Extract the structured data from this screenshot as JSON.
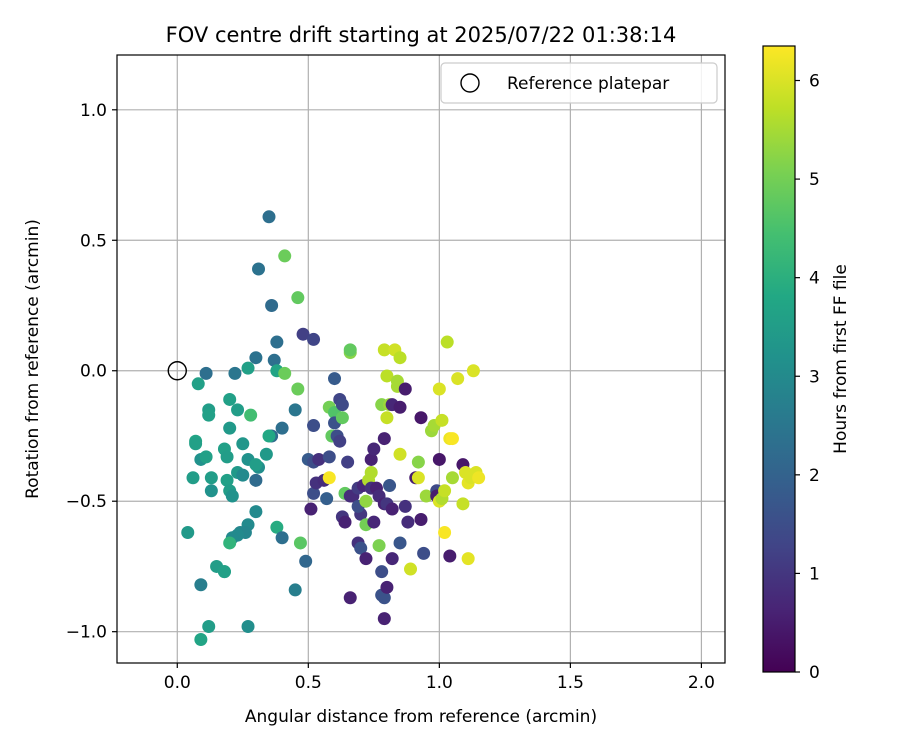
{
  "chart_data": {
    "type": "scatter",
    "title": "FOV centre drift starting at 2025/07/22 01:38:14",
    "xlabel": "Angular distance from reference (arcmin)",
    "ylabel": "Rotation from reference (arcmin)",
    "xlim": [
      -0.23,
      2.09
    ],
    "ylim": [
      -1.12,
      1.21
    ],
    "xticks": [
      0.0,
      0.5,
      1.0,
      1.5,
      2.0
    ],
    "xtick_labels": [
      "0.0",
      "0.5",
      "1.0",
      "1.5",
      "2.0"
    ],
    "yticks": [
      -1.0,
      -0.5,
      0.0,
      0.5,
      1.0
    ],
    "ytick_labels": [
      "−1.0",
      "−0.5",
      "0.0",
      "0.5",
      "1.0"
    ],
    "grid": true,
    "legend": {
      "placement": "top-right",
      "entries": [
        "Reference platepar"
      ]
    },
    "reference": {
      "x": 0.0,
      "y": 0.0
    },
    "colorbar": {
      "label": "Hours from first FF file",
      "range": [
        0,
        6.35
      ],
      "ticks": [
        0,
        1,
        2,
        3,
        4,
        5,
        6
      ],
      "colormap": "viridis"
    },
    "points": [
      {
        "x": 0.35,
        "y": 0.59,
        "c": 2.3
      },
      {
        "x": 0.31,
        "y": 0.39,
        "c": 2.4
      },
      {
        "x": 0.36,
        "y": 0.25,
        "c": 2.2
      },
      {
        "x": 0.41,
        "y": 0.44,
        "c": 4.9
      },
      {
        "x": 0.46,
        "y": 0.28,
        "c": 4.8
      },
      {
        "x": 0.48,
        "y": 0.14,
        "c": 1.2
      },
      {
        "x": 0.52,
        "y": 0.12,
        "c": 1.3
      },
      {
        "x": 0.38,
        "y": 0.11,
        "c": 2.3
      },
      {
        "x": 0.3,
        "y": 0.05,
        "c": 2.4
      },
      {
        "x": 0.37,
        "y": 0.04,
        "c": 2.3
      },
      {
        "x": 0.38,
        "y": 0.0,
        "c": 3.7
      },
      {
        "x": 0.41,
        "y": -0.01,
        "c": 4.9
      },
      {
        "x": 0.27,
        "y": 0.01,
        "c": 3.6
      },
      {
        "x": 0.22,
        "y": -0.01,
        "c": 2.5
      },
      {
        "x": 0.11,
        "y": -0.01,
        "c": 2.3
      },
      {
        "x": 0.08,
        "y": -0.05,
        "c": 3.6
      },
      {
        "x": 0.46,
        "y": -0.07,
        "c": 4.9
      },
      {
        "x": 0.2,
        "y": -0.11,
        "c": 3.6
      },
      {
        "x": 0.12,
        "y": -0.15,
        "c": 3.5
      },
      {
        "x": 0.12,
        "y": -0.17,
        "c": 3.6
      },
      {
        "x": 0.23,
        "y": -0.15,
        "c": 3.5
      },
      {
        "x": 0.45,
        "y": -0.15,
        "c": 2.5
      },
      {
        "x": 0.28,
        "y": -0.17,
        "c": 4.4
      },
      {
        "x": 0.2,
        "y": -0.22,
        "c": 3.4
      },
      {
        "x": 0.4,
        "y": -0.22,
        "c": 2.3
      },
      {
        "x": 0.52,
        "y": -0.21,
        "c": 1.5
      },
      {
        "x": 0.36,
        "y": -0.25,
        "c": 2.2
      },
      {
        "x": 0.35,
        "y": -0.25,
        "c": 3.8
      },
      {
        "x": 0.25,
        "y": -0.28,
        "c": 3.3
      },
      {
        "x": 0.07,
        "y": -0.27,
        "c": 3.7
      },
      {
        "x": 0.07,
        "y": -0.28,
        "c": 3.6
      },
      {
        "x": 0.18,
        "y": -0.3,
        "c": 3.6
      },
      {
        "x": 0.34,
        "y": -0.32,
        "c": 3.4
      },
      {
        "x": 0.09,
        "y": -0.34,
        "c": 3.2
      },
      {
        "x": 0.11,
        "y": -0.33,
        "c": 3.6
      },
      {
        "x": 0.19,
        "y": -0.33,
        "c": 3.5
      },
      {
        "x": 0.27,
        "y": -0.34,
        "c": 3.2
      },
      {
        "x": 0.31,
        "y": -0.37,
        "c": 3.1
      },
      {
        "x": 0.3,
        "y": -0.36,
        "c": 3.5
      },
      {
        "x": 0.23,
        "y": -0.39,
        "c": 3.4
      },
      {
        "x": 0.25,
        "y": -0.4,
        "c": 3.0
      },
      {
        "x": 0.06,
        "y": -0.41,
        "c": 3.5
      },
      {
        "x": 0.13,
        "y": -0.41,
        "c": 3.5
      },
      {
        "x": 0.19,
        "y": -0.42,
        "c": 3.6
      },
      {
        "x": 0.3,
        "y": -0.42,
        "c": 2.2
      },
      {
        "x": 0.13,
        "y": -0.46,
        "c": 3.2
      },
      {
        "x": 0.2,
        "y": -0.46,
        "c": 3.5
      },
      {
        "x": 0.21,
        "y": -0.48,
        "c": 3.2
      },
      {
        "x": 0.3,
        "y": -0.54,
        "c": 3.0
      },
      {
        "x": 0.27,
        "y": -0.59,
        "c": 3.0
      },
      {
        "x": 0.24,
        "y": -0.62,
        "c": 2.9
      },
      {
        "x": 0.26,
        "y": -0.62,
        "c": 2.9
      },
      {
        "x": 0.23,
        "y": -0.63,
        "c": 3.0
      },
      {
        "x": 0.21,
        "y": -0.64,
        "c": 3.0
      },
      {
        "x": 0.2,
        "y": -0.66,
        "c": 4.1
      },
      {
        "x": 0.04,
        "y": -0.62,
        "c": 3.4
      },
      {
        "x": 0.38,
        "y": -0.6,
        "c": 3.9
      },
      {
        "x": 0.4,
        "y": -0.64,
        "c": 2.3
      },
      {
        "x": 0.47,
        "y": -0.66,
        "c": 4.7
      },
      {
        "x": 0.15,
        "y": -0.75,
        "c": 3.5
      },
      {
        "x": 0.18,
        "y": -0.77,
        "c": 3.9
      },
      {
        "x": 0.18,
        "y": -0.77,
        "c": 3.6
      },
      {
        "x": 0.09,
        "y": -0.82,
        "c": 2.7
      },
      {
        "x": 0.45,
        "y": -0.84,
        "c": 2.7
      },
      {
        "x": 0.12,
        "y": -0.98,
        "c": 3.5
      },
      {
        "x": 0.27,
        "y": -0.98,
        "c": 3.1
      },
      {
        "x": 0.09,
        "y": -1.03,
        "c": 3.7
      },
      {
        "x": 0.49,
        "y": -0.73,
        "c": 2.1
      },
      {
        "x": 0.5,
        "y": -0.34,
        "c": 1.8
      },
      {
        "x": 0.52,
        "y": -0.35,
        "c": 1.5
      },
      {
        "x": 0.54,
        "y": -0.34,
        "c": 0.9
      },
      {
        "x": 0.52,
        "y": -0.47,
        "c": 1.5
      },
      {
        "x": 0.53,
        "y": -0.43,
        "c": 0.9
      },
      {
        "x": 0.51,
        "y": -0.53,
        "c": 0.6
      },
      {
        "x": 0.56,
        "y": -0.42,
        "c": 0.8
      },
      {
        "x": 0.57,
        "y": -0.49,
        "c": 1.9
      },
      {
        "x": 0.58,
        "y": -0.33,
        "c": 1.5
      },
      {
        "x": 0.58,
        "y": -0.41,
        "c": 6.3
      },
      {
        "x": 0.58,
        "y": -0.14,
        "c": 5.0
      },
      {
        "x": 0.6,
        "y": -0.16,
        "c": 4.6
      },
      {
        "x": 0.59,
        "y": -0.25,
        "c": 4.8
      },
      {
        "x": 0.61,
        "y": -0.25,
        "c": 1.5
      },
      {
        "x": 0.6,
        "y": -0.2,
        "c": 1.6
      },
      {
        "x": 0.63,
        "y": -0.18,
        "c": 4.8
      },
      {
        "x": 0.62,
        "y": -0.11,
        "c": 1.3
      },
      {
        "x": 0.63,
        "y": -0.13,
        "c": 1.4
      },
      {
        "x": 0.6,
        "y": -0.03,
        "c": 1.8
      },
      {
        "x": 0.62,
        "y": -0.27,
        "c": 1.2
      },
      {
        "x": 0.65,
        "y": -0.35,
        "c": 1.2
      },
      {
        "x": 0.64,
        "y": -0.47,
        "c": 4.8
      },
      {
        "x": 0.63,
        "y": -0.56,
        "c": 1.0
      },
      {
        "x": 0.64,
        "y": -0.58,
        "c": 0.6
      },
      {
        "x": 0.66,
        "y": -0.48,
        "c": 0.8
      },
      {
        "x": 0.67,
        "y": -0.48,
        "c": 0.8
      },
      {
        "x": 0.69,
        "y": -0.45,
        "c": 1.1
      },
      {
        "x": 0.66,
        "y": 0.07,
        "c": 5.2
      },
      {
        "x": 0.66,
        "y": 0.08,
        "c": 4.8
      },
      {
        "x": 0.66,
        "y": -0.87,
        "c": 0.6
      },
      {
        "x": 0.69,
        "y": -0.66,
        "c": 0.9
      },
      {
        "x": 0.7,
        "y": -0.55,
        "c": 1.0
      },
      {
        "x": 0.7,
        "y": -0.68,
        "c": 1.6
      },
      {
        "x": 0.69,
        "y": -0.52,
        "c": 1.5
      },
      {
        "x": 0.71,
        "y": -0.44,
        "c": 0.7
      },
      {
        "x": 0.72,
        "y": -0.59,
        "c": 5.0
      },
      {
        "x": 0.72,
        "y": -0.5,
        "c": 5.3
      },
      {
        "x": 0.72,
        "y": -0.72,
        "c": 0.6
      },
      {
        "x": 0.74,
        "y": -0.39,
        "c": 5.6
      },
      {
        "x": 0.73,
        "y": -0.42,
        "c": 5.6
      },
      {
        "x": 0.74,
        "y": -0.45,
        "c": 0.9
      },
      {
        "x": 0.74,
        "y": -0.34,
        "c": 0.6
      },
      {
        "x": 0.75,
        "y": -0.3,
        "c": 0.7
      },
      {
        "x": 0.75,
        "y": -0.58,
        "c": 0.7
      },
      {
        "x": 0.76,
        "y": -0.45,
        "c": 0.6
      },
      {
        "x": 0.77,
        "y": -0.48,
        "c": 0.8
      },
      {
        "x": 0.77,
        "y": -0.67,
        "c": 5.1
      },
      {
        "x": 0.78,
        "y": -0.77,
        "c": 1.5
      },
      {
        "x": 0.78,
        "y": -0.86,
        "c": 1.6
      },
      {
        "x": 0.79,
        "y": -0.87,
        "c": 1.6
      },
      {
        "x": 0.79,
        "y": -0.95,
        "c": 0.6
      },
      {
        "x": 0.8,
        "y": -0.83,
        "c": 0.6
      },
      {
        "x": 0.79,
        "y": -0.51,
        "c": 0.6
      },
      {
        "x": 0.8,
        "y": -0.51,
        "c": 1.0
      },
      {
        "x": 0.79,
        "y": -0.26,
        "c": 0.6
      },
      {
        "x": 0.78,
        "y": -0.13,
        "c": 5.2
      },
      {
        "x": 0.79,
        "y": 0.08,
        "c": 5.8
      },
      {
        "x": 0.8,
        "y": -0.02,
        "c": 5.7
      },
      {
        "x": 0.8,
        "y": -0.18,
        "c": 5.8
      },
      {
        "x": 0.81,
        "y": -0.13,
        "c": 5.4
      },
      {
        "x": 0.82,
        "y": -0.13,
        "c": 0.7
      },
      {
        "x": 0.81,
        "y": -0.44,
        "c": 1.7
      },
      {
        "x": 0.82,
        "y": -0.53,
        "c": 0.6
      },
      {
        "x": 0.82,
        "y": -0.72,
        "c": 0.7
      },
      {
        "x": 0.83,
        "y": 0.08,
        "c": 5.9
      },
      {
        "x": 0.84,
        "y": -0.04,
        "c": 5.5
      },
      {
        "x": 0.84,
        "y": -0.06,
        "c": 5.5
      },
      {
        "x": 0.85,
        "y": 0.05,
        "c": 5.7
      },
      {
        "x": 0.85,
        "y": -0.32,
        "c": 5.9
      },
      {
        "x": 0.85,
        "y": -0.66,
        "c": 1.7
      },
      {
        "x": 0.85,
        "y": -0.14,
        "c": 0.5
      },
      {
        "x": 0.87,
        "y": -0.07,
        "c": 0.5
      },
      {
        "x": 0.87,
        "y": -0.52,
        "c": 0.9
      },
      {
        "x": 0.88,
        "y": -0.58,
        "c": 0.8
      },
      {
        "x": 0.89,
        "y": -0.76,
        "c": 5.9
      },
      {
        "x": 0.91,
        "y": -0.41,
        "c": 0.5
      },
      {
        "x": 0.92,
        "y": -0.41,
        "c": 6.0
      },
      {
        "x": 0.92,
        "y": -0.35,
        "c": 5.2
      },
      {
        "x": 0.93,
        "y": -0.18,
        "c": 0.4
      },
      {
        "x": 0.93,
        "y": -0.57,
        "c": 0.5
      },
      {
        "x": 0.94,
        "y": -0.7,
        "c": 1.5
      },
      {
        "x": 0.95,
        "y": -0.48,
        "c": 5.4
      },
      {
        "x": 0.97,
        "y": -0.23,
        "c": 5.4
      },
      {
        "x": 0.98,
        "y": -0.21,
        "c": 5.5
      },
      {
        "x": 0.99,
        "y": -0.46,
        "c": 1.4
      },
      {
        "x": 0.99,
        "y": -0.48,
        "c": 0.5
      },
      {
        "x": 1.0,
        "y": -0.34,
        "c": 0.4
      },
      {
        "x": 1.0,
        "y": -0.07,
        "c": 6.0
      },
      {
        "x": 1.0,
        "y": -0.5,
        "c": 6.0
      },
      {
        "x": 1.01,
        "y": -0.49,
        "c": 5.6
      },
      {
        "x": 1.01,
        "y": -0.19,
        "c": 5.8
      },
      {
        "x": 1.02,
        "y": -0.46,
        "c": 5.8
      },
      {
        "x": 1.03,
        "y": 0.11,
        "c": 5.7
      },
      {
        "x": 1.02,
        "y": -0.62,
        "c": 6.3
      },
      {
        "x": 1.04,
        "y": -0.71,
        "c": 0.5
      },
      {
        "x": 1.04,
        "y": -0.26,
        "c": 6.2
      },
      {
        "x": 1.05,
        "y": -0.26,
        "c": 6.3
      },
      {
        "x": 1.05,
        "y": -0.41,
        "c": 5.5
      },
      {
        "x": 1.07,
        "y": -0.03,
        "c": 6.0
      },
      {
        "x": 1.09,
        "y": -0.36,
        "c": 0.4
      },
      {
        "x": 1.09,
        "y": -0.51,
        "c": 5.8
      },
      {
        "x": 1.1,
        "y": -0.39,
        "c": 6.0
      },
      {
        "x": 1.11,
        "y": -0.43,
        "c": 6.1
      },
      {
        "x": 1.12,
        "y": -0.41,
        "c": 6.0
      },
      {
        "x": 1.11,
        "y": -0.72,
        "c": 6.1
      },
      {
        "x": 1.13,
        "y": 0.0,
        "c": 6.0
      },
      {
        "x": 1.14,
        "y": -0.39,
        "c": 6.0
      },
      {
        "x": 1.15,
        "y": -0.41,
        "c": 6.2
      }
    ]
  }
}
